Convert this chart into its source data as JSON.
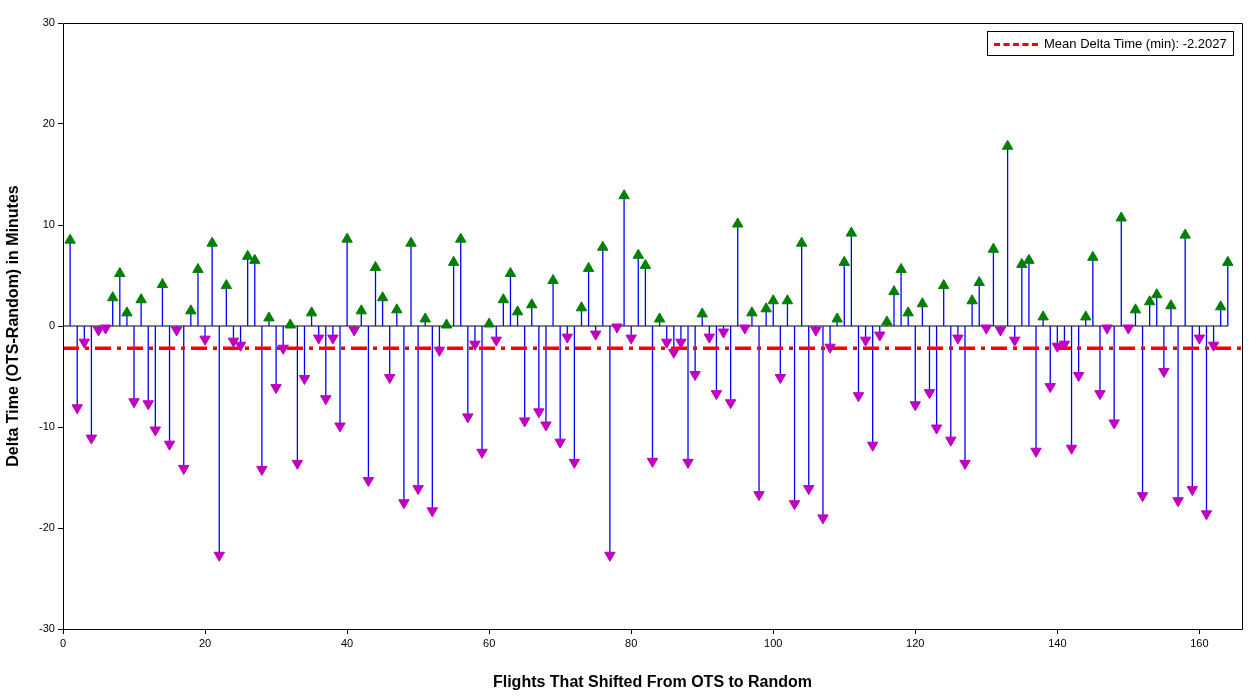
{
  "chart_data": {
    "type": "lollipop",
    "xlabel": "Flights That Shifted From OTS to Random",
    "ylabel": "Delta Time (OTS-Random) in Minutes",
    "x": [
      1,
      2,
      3,
      4,
      5,
      6,
      7,
      8,
      9,
      10,
      11,
      12,
      13,
      14,
      15,
      16,
      17,
      18,
      19,
      20,
      21,
      22,
      23,
      24,
      25,
      26,
      27,
      28,
      29,
      30,
      31,
      32,
      33,
      34,
      35,
      36,
      37,
      38,
      39,
      40,
      41,
      42,
      43,
      44,
      45,
      46,
      47,
      48,
      49,
      50,
      51,
      52,
      53,
      54,
      55,
      56,
      57,
      58,
      59,
      60,
      61,
      62,
      63,
      64,
      65,
      66,
      67,
      68,
      69,
      70,
      71,
      72,
      73,
      74,
      75,
      76,
      77,
      78,
      79,
      80,
      81,
      82,
      83,
      84,
      85,
      86,
      87,
      88,
      89,
      90,
      91,
      92,
      93,
      94,
      95,
      96,
      97,
      98,
      99,
      100,
      101,
      102,
      103,
      104,
      105,
      106,
      107,
      108,
      109,
      110,
      111,
      112,
      113,
      114,
      115,
      116,
      117,
      118,
      119,
      120,
      121,
      122,
      123,
      124,
      125,
      126,
      127,
      128,
      129,
      130,
      131,
      132,
      133,
      134,
      135,
      136,
      137,
      138,
      139,
      140,
      141,
      142,
      143,
      144,
      145,
      146,
      147,
      148,
      149,
      150,
      151,
      152,
      153,
      154,
      155,
      156,
      157,
      158,
      159,
      160,
      161,
      162,
      163,
      164
    ],
    "series": [
      {
        "color": "#0000ff",
        "values": [
          8.5,
          -8.1,
          -1.6,
          -11.1,
          -0.4,
          -0.2,
          2.8,
          5.2,
          1.3,
          -7.5,
          2.6,
          -7.7,
          -10.3,
          4.1,
          -11.7,
          -0.4,
          -14.1,
          1.5,
          5.6,
          -1.3,
          8.2,
          -22.7,
          4.0,
          -1.5,
          -1.9,
          6.9,
          6.5,
          -14.2,
          0.8,
          -6.1,
          -2.2,
          0.1,
          -13.6,
          -5.2,
          1.3,
          -1.2,
          -7.2,
          -1.2,
          -9.9,
          8.6,
          -0.4,
          1.5,
          -15.3,
          5.8,
          2.8,
          -5.1,
          1.6,
          -17.5,
          8.2,
          -16.1,
          0.7,
          -18.3,
          -2.4,
          0.1,
          6.3,
          8.6,
          -9.0,
          -1.8,
          -12.5,
          0.2,
          -1.4,
          2.6,
          5.2,
          1.4,
          -9.4,
          2.1,
          -8.5,
          -9.8,
          4.5,
          -11.5,
          -1.1,
          -13.5,
          1.8,
          5.7,
          -0.8,
          7.8,
          -22.7,
          -0.1,
          12.9,
          -1.2,
          7.0,
          6.0,
          -13.4,
          0.7,
          -1.6,
          -2.6,
          -1.6,
          -13.5,
          -4.8,
          1.2,
          -1.1,
          -6.7,
          -0.6,
          -7.6,
          10.1,
          -0.2,
          1.3,
          -16.7,
          1.7,
          2.5,
          -5.1,
          2.5,
          -17.6,
          8.2,
          -16.1,
          -0.4,
          -19.0,
          -2.1,
          0.7,
          6.3,
          9.2,
          -6.9,
          -1.4,
          -11.8,
          -0.9,
          0.4,
          3.4,
          5.6,
          1.3,
          -7.8,
          2.2,
          -6.6,
          -10.1,
          4.0,
          -11.3,
          -1.2,
          -13.6,
          2.5,
          4.3,
          -0.2,
          7.6,
          -0.4,
          17.8,
          -1.4,
          6.1,
          6.5,
          -12.4,
          0.9,
          -6.0,
          -2.0,
          -1.8,
          -12.1,
          -4.9,
          0.9,
          6.8,
          -6.7,
          -0.2,
          -9.6,
          10.7,
          -0.2,
          1.6,
          -16.8,
          2.4,
          3.1,
          -4.5,
          2.0,
          -17.3,
          9.0,
          -16.2,
          -1.2,
          -18.6,
          -1.9,
          1.9,
          6.3
        ],
        "colors": [
          "#008000",
          "#c000c0",
          "#c000c0",
          "#c000c0",
          "#c000c0",
          "#c000c0",
          "#008000",
          "#008000",
          "#008000",
          "#c000c0",
          "#008000",
          "#c000c0",
          "#c000c0",
          "#008000",
          "#c000c0",
          "#c000c0",
          "#c000c0",
          "#008000",
          "#008000",
          "#c000c0",
          "#008000",
          "#c000c0",
          "#008000",
          "#c000c0",
          "#c000c0",
          "#008000",
          "#008000",
          "#c000c0",
          "#008000",
          "#c000c0",
          "#c000c0",
          "#008000",
          "#c000c0",
          "#c000c0",
          "#008000",
          "#c000c0",
          "#c000c0",
          "#c000c0",
          "#c000c0",
          "#008000",
          "#c000c0",
          "#008000",
          "#c000c0",
          "#008000",
          "#008000",
          "#c000c0",
          "#008000",
          "#c000c0",
          "#008000",
          "#c000c0",
          "#008000",
          "#c000c0",
          "#c000c0",
          "#008000",
          "#008000",
          "#008000",
          "#c000c0",
          "#c000c0",
          "#c000c0",
          "#008000",
          "#c000c0",
          "#008000",
          "#008000",
          "#008000",
          "#c000c0",
          "#008000",
          "#c000c0",
          "#c000c0",
          "#008000",
          "#c000c0",
          "#c000c0",
          "#c000c0",
          "#008000",
          "#008000",
          "#c000c0",
          "#008000",
          "#c000c0",
          "#c000c0",
          "#008000",
          "#c000c0",
          "#008000",
          "#008000",
          "#c000c0",
          "#008000",
          "#c000c0",
          "#c000c0",
          "#c000c0",
          "#c000c0",
          "#c000c0",
          "#008000",
          "#c000c0",
          "#c000c0",
          "#c000c0",
          "#c000c0",
          "#008000",
          "#c000c0",
          "#008000",
          "#c000c0",
          "#008000",
          "#008000",
          "#c000c0",
          "#008000",
          "#c000c0",
          "#008000",
          "#c000c0",
          "#c000c0",
          "#c000c0",
          "#c000c0",
          "#008000",
          "#008000",
          "#008000",
          "#c000c0",
          "#c000c0",
          "#c000c0",
          "#c000c0",
          "#008000",
          "#008000",
          "#008000",
          "#008000",
          "#c000c0",
          "#008000",
          "#c000c0",
          "#c000c0",
          "#008000",
          "#c000c0",
          "#c000c0",
          "#c000c0",
          "#008000",
          "#008000",
          "#c000c0",
          "#008000",
          "#c000c0",
          "#008000",
          "#c000c0",
          "#008000",
          "#008000",
          "#c000c0",
          "#008000",
          "#c000c0",
          "#c000c0",
          "#c000c0",
          "#c000c0",
          "#c000c0",
          "#008000",
          "#008000",
          "#c000c0",
          "#c000c0",
          "#c000c0",
          "#008000",
          "#c000c0",
          "#008000",
          "#c000c0",
          "#008000",
          "#008000",
          "#c000c0",
          "#008000",
          "#c000c0",
          "#008000",
          "#c000c0",
          "#c000c0",
          "#c000c0",
          "#c000c0",
          "#008000",
          "#008000"
        ]
      }
    ],
    "xlim": [
      0,
      166
    ],
    "xticks": [
      0,
      20,
      40,
      60,
      80,
      100,
      120,
      140,
      160
    ],
    "ylim": [
      -30,
      30
    ],
    "yticks": [
      -30,
      -20,
      -10,
      0,
      10,
      20,
      30
    ],
    "marker": "triangle",
    "ref_lines": [
      {
        "axis": "y",
        "value": -2.2027,
        "label": "Mean Delta Time (min): -2.2027",
        "color": "#ff0000",
        "line_style": "dashed"
      }
    ],
    "legend": "top right"
  }
}
